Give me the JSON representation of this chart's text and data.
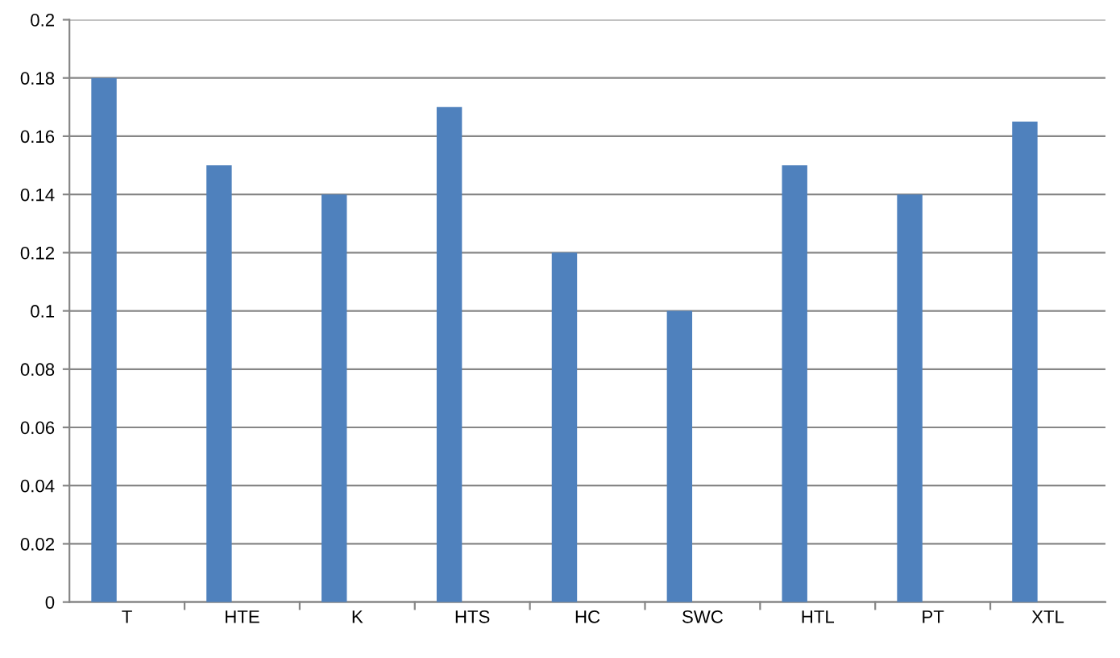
{
  "chart_data": {
    "type": "bar",
    "categories": [
      "T",
      "HTE",
      "K",
      "HTS",
      "HC",
      "SWC",
      "HTL",
      "PT",
      "XTL"
    ],
    "values": [
      0.18,
      0.15,
      0.14,
      0.17,
      0.12,
      0.1,
      0.15,
      0.14,
      0.165
    ],
    "color": "#4f81bd",
    "ylim": [
      0,
      0.2
    ],
    "yticks": [
      0,
      0.02,
      0.04,
      0.06,
      0.08,
      0.1,
      0.12,
      0.14,
      0.16,
      0.18,
      0.2
    ],
    "grid": "y"
  }
}
